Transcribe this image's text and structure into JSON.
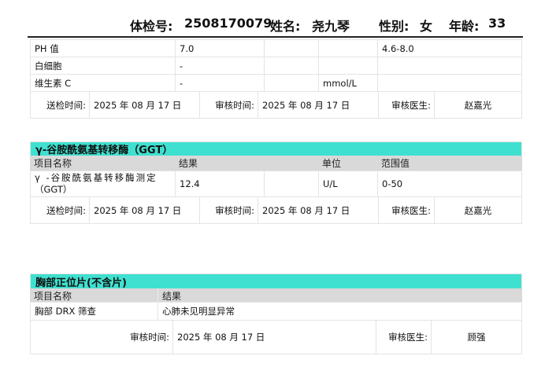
{
  "header": {
    "exam_no_label": "体检号:",
    "exam_no": "2508170079",
    "name_label": "姓名:",
    "name": "尧九琴",
    "sex_label": "性别:",
    "sex": "女",
    "age_label": "年龄:",
    "age": "33"
  },
  "urine": {
    "rows": [
      {
        "name": "PH 值",
        "result": "7.0",
        "flag": "",
        "unit": "",
        "range": "4.6-8.0"
      },
      {
        "name": "白细胞",
        "result": "-",
        "flag": "",
        "unit": "",
        "range": ""
      },
      {
        "name": "维生素 C",
        "result": "-",
        "flag": "",
        "unit": "mmol/L",
        "range": ""
      }
    ],
    "sign": {
      "send_label": "送检时间:",
      "send_date": "2025 年 08 月 17 日",
      "review_label": "审核时间:",
      "review_date": "2025 年 08 月 17 日",
      "doctor_label": "审核医生:",
      "doctor": "赵嘉光"
    }
  },
  "ggt": {
    "title": "γ-谷胺酰氨基转移酶（GGT）",
    "headers": [
      "项目名称",
      "结果",
      "单位",
      "范围值"
    ],
    "rows": [
      {
        "name_line1": "γ -谷胺酰氨基转移酶测定",
        "name_line2": "（GGT）",
        "result": "12.4",
        "flag": "",
        "unit": "U/L",
        "range": "0-50"
      }
    ],
    "sign": {
      "send_label": "送检时间:",
      "send_date": "2025 年 08 月 17 日",
      "review_label": "审核时间:",
      "review_date": "2025 年 08 月 17 日",
      "doctor_label": "审核医生:",
      "doctor": "赵嘉光"
    }
  },
  "chest": {
    "title": "胸部正位片(不含片)",
    "headers": [
      "项目名称",
      "结果"
    ],
    "rows": [
      {
        "name": "胸部 DRX 筛查",
        "result": "心肺未见明显异常"
      }
    ],
    "sign": {
      "review_label": "审核时间:",
      "review_date": "2025 年 08 月 17 日",
      "doctor_label": "审核医生:",
      "doctor": "顾强"
    }
  },
  "colors": {
    "section_header": "#40e0d0",
    "column_header": "#d9d9d9"
  }
}
